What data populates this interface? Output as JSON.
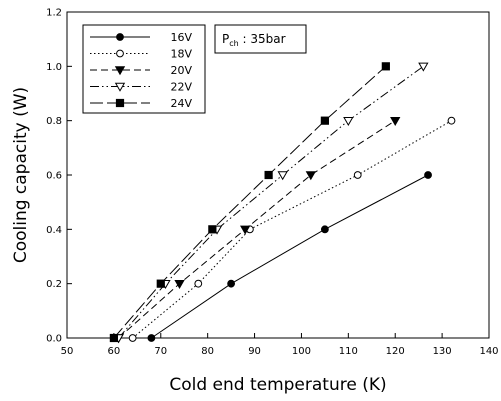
{
  "chart_data": {
    "type": "line",
    "title": "",
    "xlabel": "Cold end temperature (K)",
    "ylabel": "Cooling capacity (W)",
    "xlim": [
      50,
      140
    ],
    "ylim": [
      0.0,
      1.2
    ],
    "xticks": [
      "50",
      "60",
      "70",
      "80",
      "90",
      "100",
      "110",
      "120",
      "130",
      "140"
    ],
    "yticks": [
      "0.0",
      "0.2",
      "0.4",
      "0.6",
      "0.8",
      "1.0",
      "1.2"
    ],
    "grid": false,
    "legend_position": "top-left",
    "annotation": {
      "prefix": "P",
      "subscript": "ch",
      "suffix": " : 35bar"
    },
    "series": [
      {
        "name": "16V",
        "marker": "circle-filled",
        "dash": "solid",
        "x": [
          68,
          85,
          105,
          127
        ],
        "y": [
          0.0,
          0.2,
          0.4,
          0.6
        ]
      },
      {
        "name": "18V",
        "marker": "circle-open",
        "dash": "dotted",
        "x": [
          64,
          78,
          89,
          112,
          132
        ],
        "y": [
          0.0,
          0.2,
          0.4,
          0.6,
          0.8
        ]
      },
      {
        "name": "20V",
        "marker": "triangle-down-filled",
        "dash": "dashed",
        "x": [
          61,
          74,
          88,
          102,
          120
        ],
        "y": [
          0.0,
          0.2,
          0.4,
          0.6,
          0.8
        ]
      },
      {
        "name": "22V",
        "marker": "triangle-down-open",
        "dash": "dash-dot-dot",
        "x": [
          61,
          71,
          82,
          96,
          110,
          126
        ],
        "y": [
          0.0,
          0.2,
          0.4,
          0.6,
          0.8,
          1.0
        ]
      },
      {
        "name": "24V",
        "marker": "square-filled",
        "dash": "long-dash",
        "x": [
          60,
          70,
          81,
          93,
          105,
          118
        ],
        "y": [
          0.0,
          0.2,
          0.4,
          0.6,
          0.8,
          1.0
        ]
      }
    ]
  }
}
